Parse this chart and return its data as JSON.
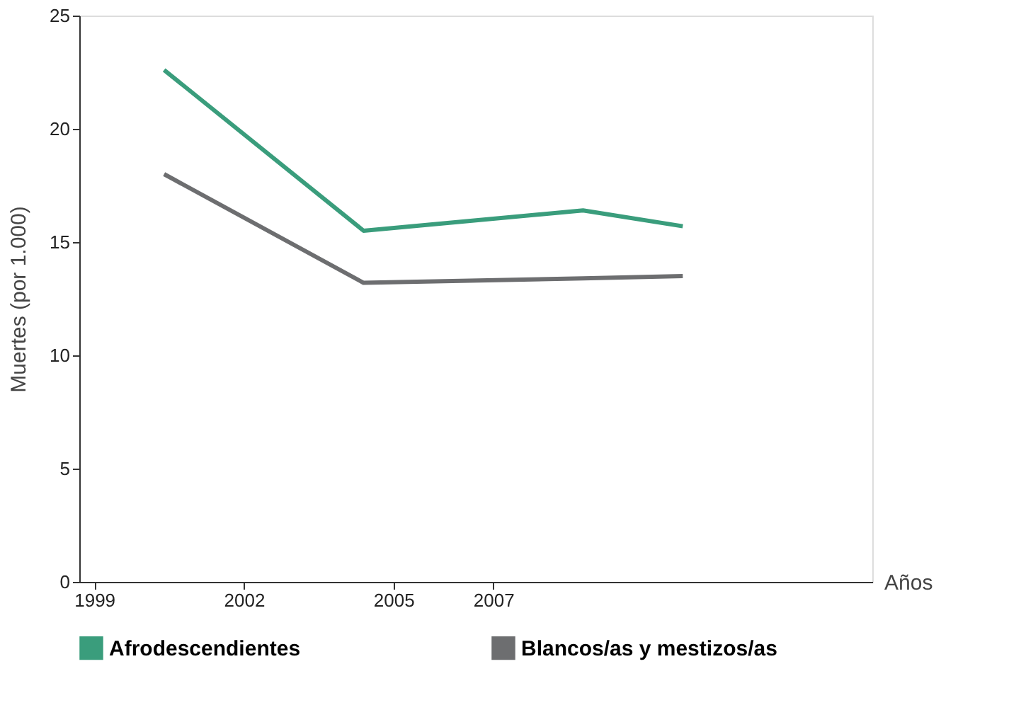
{
  "chart_data": {
    "type": "line",
    "xlabel": "Años",
    "ylabel": "Muertes (por 1.000)",
    "x": [
      2000.4,
      2004.4,
      2008.8,
      2010.8
    ],
    "series": [
      {
        "name": "Afrodescendientes",
        "color": "#3a9d7c",
        "values": [
          22.6,
          15.5,
          16.4,
          15.7
        ]
      },
      {
        "name": "Blancos/as y mestizos/as",
        "color": "#6d6e70",
        "values": [
          18.0,
          13.2,
          13.4,
          13.5
        ]
      }
    ],
    "xlim": [
      1998.7,
      2014.6
    ],
    "xticks": [
      1999,
      2002,
      2005,
      2007
    ],
    "ylim": [
      0,
      25
    ],
    "yticks": [
      0,
      5,
      10,
      15,
      20,
      25
    ],
    "grid": false,
    "legend": "bottom",
    "marker": "none",
    "line_style": "solid"
  }
}
